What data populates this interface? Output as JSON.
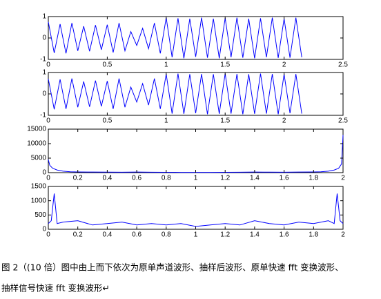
{
  "chart_data": [
    {
      "type": "line",
      "xlim": [
        0,
        2.5
      ],
      "xticks": [
        0,
        0.5,
        1,
        1.5,
        2,
        2.5
      ],
      "ylim": [
        -1,
        1
      ],
      "yticks": [
        -1,
        0,
        1
      ],
      "x": [
        0,
        0.05,
        0.1,
        0.15,
        0.2,
        0.25,
        0.3,
        0.35,
        0.4,
        0.45,
        0.5,
        0.55,
        0.6,
        0.65,
        0.7,
        0.75,
        0.8,
        0.85,
        0.9,
        0.95,
        1,
        1.05,
        1.1,
        1.15,
        1.2,
        1.25,
        1.3,
        1.35,
        1.4,
        1.45,
        1.5,
        1.55,
        1.6,
        1.65,
        1.7,
        1.75,
        1.8,
        1.85,
        1.9,
        1.95,
        2,
        2.05,
        2.1,
        2.15
      ],
      "series": [
        {
          "color": "#0000ff",
          "values": [
            0.75,
            -0.7,
            0.65,
            -0.72,
            0.7,
            -0.6,
            0.55,
            -0.62,
            0.6,
            -0.55,
            0.62,
            -0.68,
            0.7,
            -0.6,
            0.3,
            -0.35,
            0.45,
            -0.5,
            0.7,
            -0.72,
            0.95,
            -0.9,
            0.92,
            -0.95,
            0.9,
            -0.88,
            0.95,
            -0.92,
            0.9,
            -0.95,
            0.93,
            -0.9,
            0.95,
            -0.92,
            0.9,
            -0.95,
            0.92,
            -0.9,
            0.95,
            -0.93,
            0.9,
            -0.92,
            0.95,
            -0.9
          ]
        }
      ]
    },
    {
      "type": "line",
      "xlim": [
        0,
        2.5
      ],
      "xticks": [
        0,
        0.5,
        1,
        1.5,
        2,
        2.5
      ],
      "ylim": [
        -1,
        1
      ],
      "yticks": [
        -1,
        0,
        1
      ],
      "x": [
        0,
        0.05,
        0.1,
        0.15,
        0.2,
        0.25,
        0.3,
        0.35,
        0.4,
        0.45,
        0.5,
        0.55,
        0.6,
        0.65,
        0.7,
        0.75,
        0.8,
        0.85,
        0.9,
        0.95,
        1,
        1.05,
        1.1,
        1.15,
        1.2,
        1.25,
        1.3,
        1.35,
        1.4,
        1.45,
        1.5,
        1.55,
        1.6,
        1.65,
        1.7,
        1.75,
        1.8,
        1.85,
        1.9,
        1.95,
        2,
        2.05,
        2.1,
        2.15
      ],
      "series": [
        {
          "color": "#0000ff",
          "values": [
            0.7,
            -0.72,
            0.68,
            -0.7,
            0.72,
            -0.62,
            0.58,
            -0.6,
            0.62,
            -0.58,
            0.6,
            -0.7,
            0.72,
            -0.62,
            0.32,
            -0.38,
            0.48,
            -0.52,
            0.72,
            -0.7,
            0.93,
            -0.92,
            0.95,
            -0.93,
            0.92,
            -0.9,
            0.93,
            -0.95,
            0.92,
            -0.93,
            0.95,
            -0.92,
            0.93,
            -0.95,
            0.92,
            -0.93,
            0.95,
            -0.92,
            0.93,
            -0.95,
            0.92,
            -0.9,
            0.93,
            -0.92
          ]
        }
      ]
    },
    {
      "type": "line",
      "xlim": [
        0,
        2
      ],
      "xticks": [
        0,
        0.2,
        0.4,
        0.6,
        0.8,
        1,
        1.2,
        1.4,
        1.6,
        1.8,
        2
      ],
      "ylim": [
        0,
        15000
      ],
      "yticks": [
        0,
        5000,
        10000,
        15000
      ],
      "x": [
        0,
        0.01,
        0.03,
        0.06,
        0.1,
        0.15,
        0.2,
        0.3,
        0.4,
        0.5,
        0.6,
        0.7,
        0.8,
        0.9,
        1,
        1.1,
        1.2,
        1.3,
        1.4,
        1.5,
        1.6,
        1.7,
        1.8,
        1.85,
        1.9,
        1.94,
        1.97,
        1.99,
        2
      ],
      "series": [
        {
          "color": "#0000ff",
          "values": [
            4500,
            2500,
            1500,
            900,
            500,
            300,
            250,
            200,
            180,
            150,
            200,
            150,
            120,
            100,
            90,
            100,
            120,
            150,
            200,
            180,
            150,
            200,
            250,
            300,
            500,
            900,
            1500,
            3000,
            13000
          ]
        }
      ]
    },
    {
      "type": "line",
      "xlim": [
        0,
        2
      ],
      "xticks": [
        0,
        0.2,
        0.4,
        0.6,
        0.8,
        1,
        1.2,
        1.4,
        1.6,
        1.8,
        2
      ],
      "ylim": [
        0,
        1500
      ],
      "yticks": [
        0,
        500,
        1000,
        1500
      ],
      "x": [
        0,
        0.02,
        0.04,
        0.06,
        0.1,
        0.2,
        0.3,
        0.4,
        0.5,
        0.6,
        0.7,
        0.8,
        0.9,
        1,
        1.1,
        1.2,
        1.3,
        1.4,
        1.5,
        1.6,
        1.7,
        1.8,
        1.9,
        1.94,
        1.96,
        1.98,
        2
      ],
      "series": [
        {
          "color": "#0000ff",
          "values": [
            200,
            300,
            1250,
            200,
            250,
            300,
            150,
            200,
            250,
            150,
            200,
            150,
            200,
            100,
            150,
            200,
            150,
            300,
            200,
            150,
            250,
            200,
            300,
            200,
            1250,
            300,
            200
          ]
        }
      ]
    }
  ],
  "caption": [
    "图 2（(10 倍）图中由上而下依次为原单声道波形、抽样后波形、原单快速 fft 变换波形、",
    "抽样信号快速 fft 变换波形↵"
  ]
}
